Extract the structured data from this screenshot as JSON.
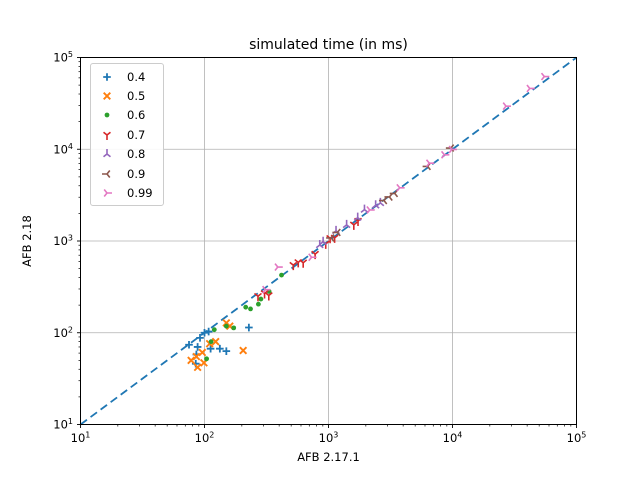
{
  "figure": {
    "background": "#ffffff"
  },
  "chart_data": {
    "type": "scatter",
    "title": "simulated time (in ms)",
    "xlabel": "AFB 2.17.1",
    "ylabel": "AFB 2.18",
    "xscale": "log",
    "yscale": "log",
    "xlim": [
      10,
      100000
    ],
    "ylim": [
      10,
      100000
    ],
    "x_tick_labels": [
      "10^1",
      "10^2",
      "10^3",
      "10^4",
      "10^5"
    ],
    "y_tick_labels": [
      "10^1",
      "10^2",
      "10^3",
      "10^4",
      "10^5"
    ],
    "grid": "major gridlines, both axes",
    "grid_color": "#b0b0b0",
    "legend_position": "upper left",
    "reference_line": {
      "style": "dashed",
      "color": "#1f77b4",
      "from": [
        10,
        10
      ],
      "to": [
        100000,
        100000
      ]
    },
    "series": [
      {
        "name": "0.4",
        "marker": "plus",
        "color": "#1f77b4",
        "points": [
          [
            100,
            100
          ],
          [
            108,
            103
          ],
          [
            92,
            88
          ],
          [
            75,
            74
          ],
          [
            88,
            70
          ],
          [
            112,
            67
          ],
          [
            133,
            67
          ],
          [
            86,
            58
          ],
          [
            85,
            46
          ],
          [
            150,
            63
          ],
          [
            228,
            114
          ]
        ]
      },
      {
        "name": "0.5",
        "marker": "x",
        "color": "#ff7f0e",
        "points": [
          [
            150,
            128
          ],
          [
            160,
            118
          ],
          [
            110,
            76
          ],
          [
            123,
            80
          ],
          [
            86,
            55
          ],
          [
            96,
            61
          ],
          [
            88,
            42
          ],
          [
            99,
            47
          ],
          [
            78,
            50
          ],
          [
            205,
            64
          ]
        ]
      },
      {
        "name": "0.6",
        "marker": "point",
        "color": "#2ca02c",
        "points": [
          [
            104,
            52
          ],
          [
            113,
            80
          ],
          [
            120,
            108
          ],
          [
            150,
            118
          ],
          [
            172,
            113
          ],
          [
            215,
            190
          ],
          [
            235,
            182
          ],
          [
            272,
            205
          ],
          [
            285,
            233
          ],
          [
            332,
            282
          ],
          [
            418,
            425
          ]
        ]
      },
      {
        "name": "0.7",
        "marker": "tri_down",
        "color": "#d62728",
        "points": [
          [
            270,
            250
          ],
          [
            305,
            268
          ],
          [
            330,
            255
          ],
          [
            520,
            545
          ],
          [
            570,
            585
          ],
          [
            625,
            580
          ],
          [
            780,
            720
          ],
          [
            950,
            930
          ],
          [
            1030,
            1070
          ],
          [
            1120,
            1080
          ],
          [
            1600,
            1500
          ],
          [
            1730,
            1650
          ]
        ]
      },
      {
        "name": "0.8",
        "marker": "tri_up",
        "color": "#9467bd",
        "points": [
          [
            850,
            905
          ],
          [
            905,
            980
          ],
          [
            1150,
            1290
          ],
          [
            1400,
            1500
          ],
          [
            1720,
            1800
          ],
          [
            1950,
            2200
          ],
          [
            2400,
            2450
          ],
          [
            2620,
            2600
          ]
        ]
      },
      {
        "name": "0.9",
        "marker": "tri_left",
        "color": "#8c564b",
        "points": [
          [
            1050,
            1080
          ],
          [
            1180,
            1240
          ],
          [
            2800,
            2760
          ],
          [
            3100,
            3020
          ],
          [
            3420,
            3300
          ],
          [
            6300,
            6500
          ],
          [
            9700,
            10300
          ]
        ]
      },
      {
        "name": "0.99",
        "marker": "tri_right",
        "color": "#e377c2",
        "points": [
          [
            310,
            295
          ],
          [
            390,
            520
          ],
          [
            730,
            665
          ],
          [
            2150,
            2180
          ],
          [
            3750,
            3800
          ],
          [
            6500,
            7050
          ],
          [
            8600,
            8700
          ],
          [
            9900,
            9950
          ],
          [
            27000,
            29500
          ],
          [
            42000,
            46000
          ],
          [
            55000,
            62000
          ]
        ]
      }
    ]
  }
}
